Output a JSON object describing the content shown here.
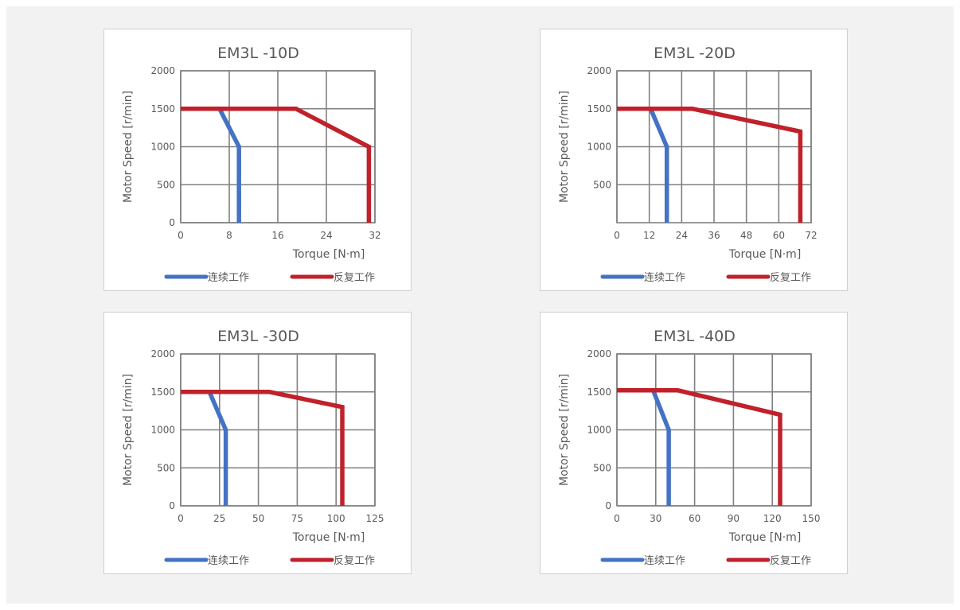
{
  "chart_data": [
    {
      "type": "line",
      "title": "EM3L -10D",
      "xlabel": "Torque [N·m]",
      "ylabel": "Motor Speed [r/min]",
      "xlim": [
        0,
        32
      ],
      "ylim": [
        0,
        2000
      ],
      "x_ticks": [
        0,
        8,
        16,
        24,
        32
      ],
      "y_ticks": [
        0,
        500,
        1000,
        1500,
        2000
      ],
      "grid": true,
      "legend_position": "bottom",
      "series": [
        {
          "name": "连续工作",
          "color": "#4472c4",
          "x": [
            0,
            6.4,
            9.6,
            9.6
          ],
          "y": [
            1500,
            1500,
            1000,
            0
          ]
        },
        {
          "name": "反复工作",
          "color": "#c0212b",
          "x": [
            0,
            19,
            31,
            31
          ],
          "y": [
            1500,
            1500,
            1000,
            0
          ]
        }
      ]
    },
    {
      "type": "line",
      "title": "EM3L -20D",
      "xlabel": "Torque [N·m]",
      "ylabel": "Motor Speed [r/min]",
      "xlim": [
        0,
        72
      ],
      "ylim": [
        0,
        2000
      ],
      "x_ticks": [
        0,
        12,
        24,
        36,
        48,
        60,
        72
      ],
      "y_ticks": [
        500,
        1000,
        1500,
        2000
      ],
      "grid": true,
      "legend_position": "bottom",
      "series": [
        {
          "name": "连续工作",
          "color": "#4472c4",
          "x": [
            0,
            12.5,
            18.5,
            18.5
          ],
          "y": [
            1500,
            1500,
            1000,
            0
          ]
        },
        {
          "name": "反复工作",
          "color": "#c0212b",
          "x": [
            0,
            28,
            68,
            68
          ],
          "y": [
            1500,
            1500,
            1200,
            0
          ]
        }
      ]
    },
    {
      "type": "line",
      "title": "EM3L -30D",
      "xlabel": "Torque [N·m]",
      "ylabel": "Motor Speed [r/min]",
      "xlim": [
        0,
        125
      ],
      "ylim": [
        0,
        2000
      ],
      "x_ticks": [
        0,
        25,
        50,
        75,
        100,
        125
      ],
      "y_ticks": [
        0,
        500,
        1000,
        1500,
        2000
      ],
      "grid": true,
      "legend_position": "bottom",
      "series": [
        {
          "name": "连续工作",
          "color": "#4472c4",
          "x": [
            0,
            18.5,
            29,
            29
          ],
          "y": [
            1500,
            1500,
            1000,
            0
          ]
        },
        {
          "name": "反复工作",
          "color": "#c0212b",
          "x": [
            0,
            57,
            104,
            104
          ],
          "y": [
            1500,
            1500,
            1300,
            0
          ]
        }
      ]
    },
    {
      "type": "line",
      "title": "EM3L -40D",
      "xlabel": "Torque [N·m]",
      "ylabel": "Motor Speed [r/min]",
      "xlim": [
        0,
        150
      ],
      "ylim": [
        0,
        2000
      ],
      "x_ticks": [
        0,
        30,
        60,
        90,
        120,
        150
      ],
      "y_ticks": [
        0,
        500,
        1000,
        1500,
        2000
      ],
      "grid": true,
      "legend_position": "bottom",
      "series": [
        {
          "name": "连续工作",
          "color": "#4472c4",
          "x": [
            0,
            28,
            40,
            40
          ],
          "y": [
            1520,
            1520,
            1000,
            0
          ]
        },
        {
          "name": "反复工作",
          "color": "#c0212b",
          "x": [
            0,
            47,
            126,
            126
          ],
          "y": [
            1520,
            1520,
            1200,
            0
          ]
        }
      ]
    }
  ]
}
